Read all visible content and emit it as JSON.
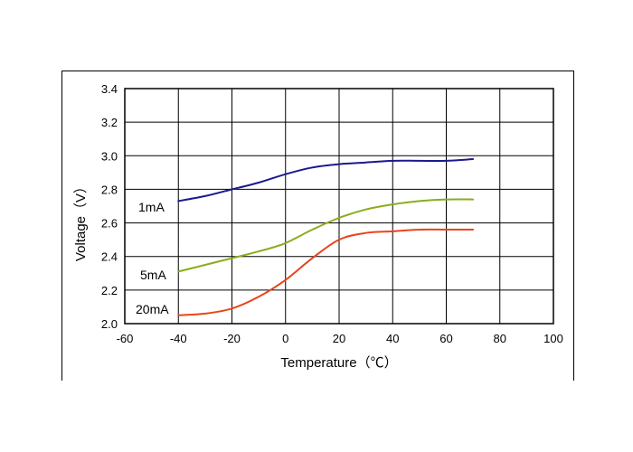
{
  "chart_data": {
    "type": "line",
    "xlabel": "Temperature（℃）",
    "ylabel": "Voltage（V）",
    "xlim": [
      -60,
      100
    ],
    "ylim": [
      2.0,
      3.4
    ],
    "xticks": [
      "-60",
      "-40",
      "-20",
      "0",
      "20",
      "40",
      "60",
      "80",
      "100"
    ],
    "yticks": [
      "2.0",
      "2.2",
      "2.4",
      "2.6",
      "2.8",
      "3.0",
      "3.2",
      "3.4"
    ],
    "grid": true,
    "series": [
      {
        "name": "1mA",
        "color": "#1a1a8c",
        "x": [
          -40,
          -30,
          -20,
          -10,
          0,
          10,
          20,
          30,
          40,
          50,
          60,
          70
        ],
        "y": [
          2.73,
          2.76,
          2.8,
          2.84,
          2.89,
          2.93,
          2.95,
          2.96,
          2.97,
          2.97,
          2.97,
          2.98
        ]
      },
      {
        "name": "5mA",
        "color": "#8aac1e",
        "x": [
          -40,
          -30,
          -20,
          -10,
          0,
          10,
          20,
          30,
          40,
          50,
          60,
          70
        ],
        "y": [
          2.31,
          2.35,
          2.39,
          2.43,
          2.48,
          2.56,
          2.63,
          2.68,
          2.71,
          2.73,
          2.74,
          2.74
        ]
      },
      {
        "name": "20mA",
        "color": "#e8441a",
        "x": [
          -40,
          -30,
          -20,
          -10,
          0,
          10,
          20,
          30,
          40,
          50,
          60,
          70
        ],
        "y": [
          2.05,
          2.06,
          2.09,
          2.16,
          2.26,
          2.39,
          2.5,
          2.54,
          2.55,
          2.56,
          2.56,
          2.56
        ]
      }
    ]
  }
}
